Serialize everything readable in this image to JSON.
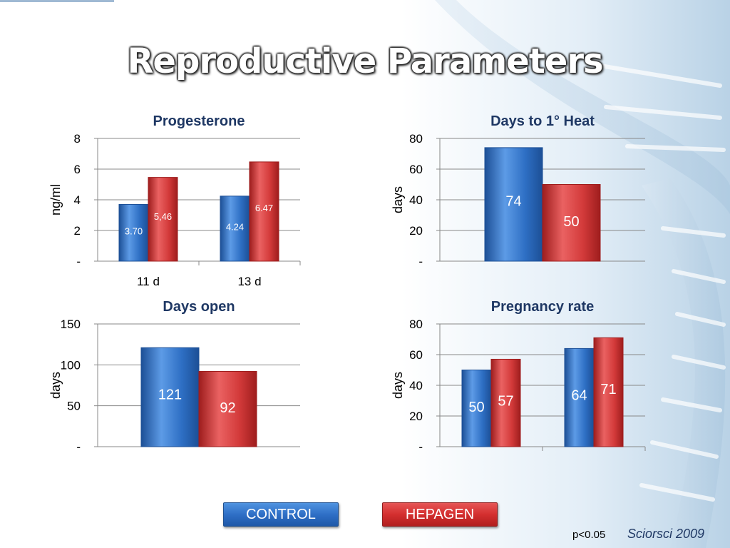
{
  "slide": {
    "title": "Reproductive Parameters",
    "footnote": "p<0.05",
    "source": "Sciorsci 2009"
  },
  "legend": {
    "control_label": "CONTROL",
    "hepagen_label": "HEPAGEN"
  },
  "colors": {
    "control": "#2e6fc4",
    "hepagen": "#d33a3a",
    "title_text": "#1f3864",
    "grid": "#888888"
  },
  "chart_data": [
    {
      "type": "bar",
      "title": "Progesterone",
      "ylabel": "ng/ml",
      "categories": [
        "11 d",
        "13 d"
      ],
      "ylim": [
        0,
        8
      ],
      "y_ticks": [
        "-",
        "2",
        "4",
        "6",
        "8"
      ],
      "series": [
        {
          "name": "CONTROL",
          "values": [
            3.7,
            4.24
          ],
          "labels": [
            "3.70",
            "4.24"
          ]
        },
        {
          "name": "HEPAGEN",
          "values": [
            5.46,
            6.47
          ],
          "labels": [
            "5,46",
            "6.47"
          ]
        }
      ]
    },
    {
      "type": "bar",
      "title": "Days to 1° Heat",
      "ylabel": "days",
      "categories": [
        ""
      ],
      "ylim": [
        0,
        80
      ],
      "y_ticks": [
        "-",
        "20",
        "40",
        "60",
        "80"
      ],
      "series": [
        {
          "name": "CONTROL",
          "values": [
            74
          ],
          "labels": [
            "74"
          ]
        },
        {
          "name": "HEPAGEN",
          "values": [
            50
          ],
          "labels": [
            "50"
          ]
        }
      ]
    },
    {
      "type": "bar",
      "title": "Days open",
      "ylabel": "days",
      "categories": [
        ""
      ],
      "ylim": [
        0,
        150
      ],
      "y_ticks": [
        "-",
        "50",
        "100",
        "150"
      ],
      "series": [
        {
          "name": "CONTROL",
          "values": [
            121
          ],
          "labels": [
            "121"
          ]
        },
        {
          "name": "HEPAGEN",
          "values": [
            92
          ],
          "labels": [
            "92"
          ]
        }
      ]
    },
    {
      "type": "bar",
      "title": "Pregnancy rate",
      "ylabel": "days",
      "categories": [
        "",
        ""
      ],
      "ylim": [
        0,
        80
      ],
      "y_ticks": [
        "-",
        "20",
        "40",
        "60",
        "80"
      ],
      "series": [
        {
          "name": "CONTROL",
          "values": [
            50,
            64
          ],
          "labels": [
            "50",
            "64"
          ]
        },
        {
          "name": "HEPAGEN",
          "values": [
            57,
            71
          ],
          "labels": [
            "57",
            "71"
          ]
        }
      ]
    }
  ]
}
